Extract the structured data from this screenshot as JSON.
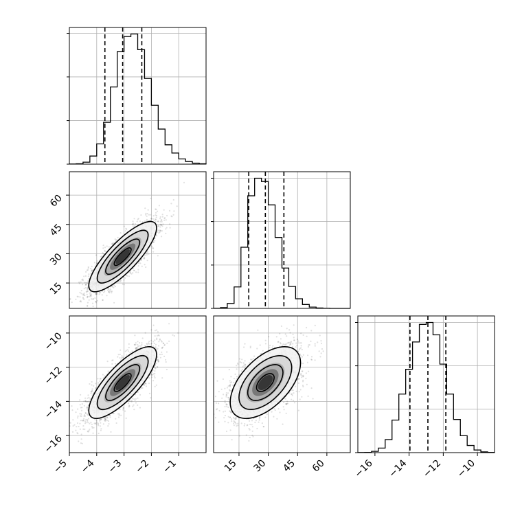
{
  "chart_data": {
    "type": "corner",
    "grid": true,
    "parameters": [
      {
        "range": [
          -5.0,
          0.0
        ],
        "ticks": [
          -5,
          -4,
          -3,
          -2,
          -1
        ],
        "tick_labels": [
          "−5",
          "−4",
          "−3",
          "−2",
          "−1"
        ]
      },
      {
        "range": [
          2.0,
          72.0
        ],
        "ticks": [
          15,
          30,
          45,
          60
        ],
        "tick_labels": [
          "15",
          "30",
          "45",
          "60"
        ]
      },
      {
        "range": [
          -17.0,
          -9.0
        ],
        "ticks": [
          -16,
          -14,
          -12,
          -10
        ],
        "tick_labels": [
          "−16",
          "−14",
          "−12",
          "−10"
        ]
      }
    ],
    "histograms": [
      {
        "param": 0,
        "mean": -3.05,
        "sd": 0.62,
        "range": [
          -5.0,
          0.0
        ],
        "quantiles": [
          -3.7,
          -3.05,
          -2.35
        ],
        "counts": [
          1,
          3,
          15,
          62,
          155,
          320,
          590,
          860,
          975,
          995,
          875,
          655,
          450,
          268,
          148,
          85,
          40,
          20,
          8,
          3
        ]
      },
      {
        "param": 1,
        "mean": 28.5,
        "sd": 9.0,
        "range": [
          2.0,
          72.0
        ],
        "quantiles": [
          20.0,
          28.5,
          38.0
        ],
        "counts": [
          1,
          6,
          38,
          165,
          470,
          865,
          1000,
          975,
          795,
          545,
          310,
          168,
          74,
          30,
          10,
          3,
          1,
          0,
          0,
          0
        ]
      },
      {
        "param": 2,
        "mean": -12.9,
        "sd": 1.05,
        "range": [
          -17.0,
          -9.0
        ],
        "quantiles": [
          -13.95,
          -12.9,
          -11.85
        ],
        "counts": [
          1,
          2,
          10,
          35,
          100,
          250,
          450,
          640,
          850,
          985,
          1000,
          905,
          680,
          450,
          255,
          130,
          55,
          20,
          6,
          2
        ]
      }
    ],
    "pairs": [
      {
        "x": 0,
        "y": 1,
        "correlation": 0.82
      },
      {
        "x": 0,
        "y": 2,
        "correlation": 0.78
      },
      {
        "x": 1,
        "y": 2,
        "correlation": 0.55
      }
    ]
  }
}
